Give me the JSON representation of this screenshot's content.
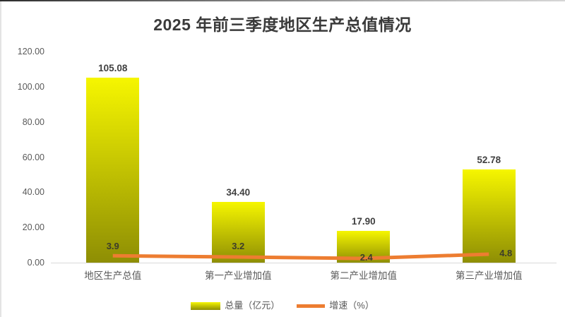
{
  "title": "2025 年前三季度地区生产总值情况",
  "chart_data": {
    "type": "bar",
    "subtype": "bar-line-combo",
    "title": "2025 年前三季度地区生产总值情况",
    "categories": [
      "地区生产总值",
      "第一产业增加值",
      "第二产业增加值",
      "第三产业增加值"
    ],
    "series": [
      {
        "name": "总量（亿元）",
        "type": "bar",
        "values": [
          105.08,
          34.4,
          17.9,
          52.78
        ],
        "data_labels": [
          "105.08",
          "34.40",
          "17.90",
          "52.78"
        ],
        "color_top": "#F6F600",
        "color_bottom": "#8E8E04"
      },
      {
        "name": "增速（%）",
        "type": "line",
        "values": [
          3.9,
          3.2,
          2.4,
          4.8
        ],
        "data_labels": [
          "3.9",
          "3.2",
          "2.4",
          "4.8"
        ],
        "color": "#ED7D31"
      }
    ],
    "ylim": [
      0,
      120
    ],
    "yticks": [
      "0.00",
      "20.00",
      "40.00",
      "60.00",
      "80.00",
      "100.00",
      "120.00"
    ],
    "grid": false,
    "legend_position": "bottom",
    "axis_color": "#D9D9D9",
    "tick_label_color": "#595959",
    "data_label_color": "#404040"
  }
}
